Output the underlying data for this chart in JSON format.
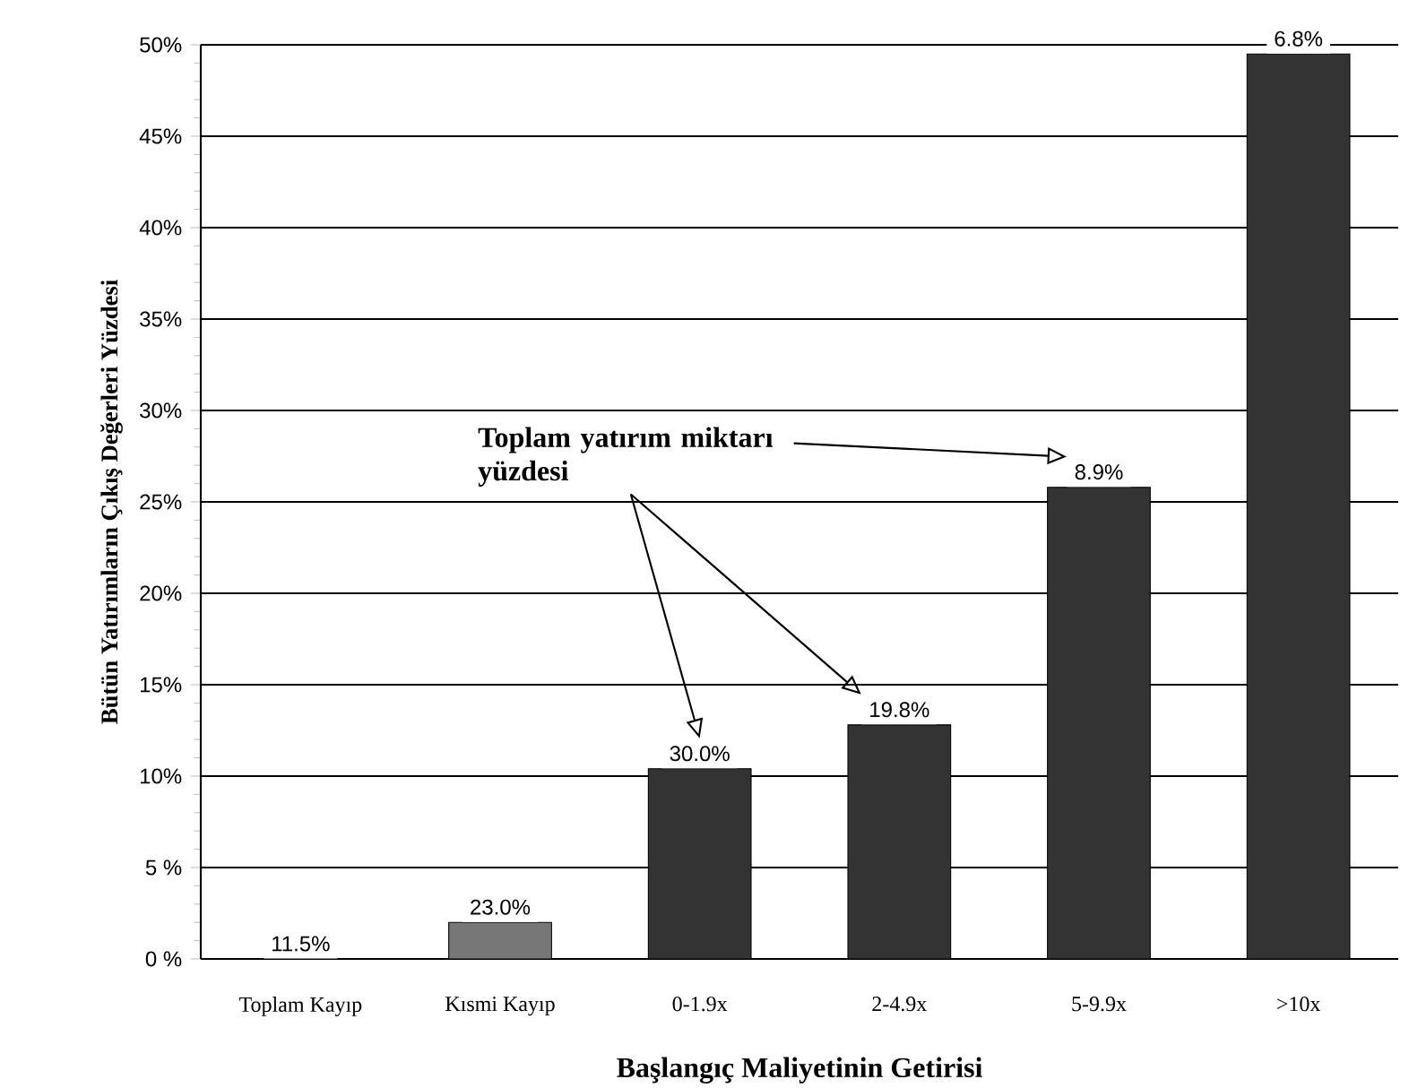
{
  "chart_data": {
    "type": "bar",
    "xlabel": "Başlangıç Maliyetinin Getirisi",
    "ylabel": "Bütün Yatırımların Çıkış Değerleri Yüzdesi",
    "categories": [
      "Toplam Kayıp",
      "Kısmi Kayıp",
      "0-1.9x",
      "2-4.9x",
      "5-9.9x",
      ">10x"
    ],
    "values": [
      0,
      2.0,
      10.4,
      12.8,
      25.8,
      49.5
    ],
    "colors": [
      "#333333",
      "#777777",
      "#333333",
      "#333333",
      "#333333",
      "#333333"
    ],
    "ylim": [
      0,
      50
    ],
    "yticks": [
      {
        "value": 0,
        "label": "0 %"
      },
      {
        "value": 5,
        "label": "5 %"
      },
      {
        "value": 10,
        "label": "10%"
      },
      {
        "value": 15,
        "label": "15%"
      },
      {
        "value": 20,
        "label": "20%"
      },
      {
        "value": 25,
        "label": "25%"
      },
      {
        "value": 30,
        "label": "30%"
      },
      {
        "value": 35,
        "label": "35%"
      },
      {
        "value": 40,
        "label": "40%"
      },
      {
        "value": 45,
        "label": "45%"
      },
      {
        "value": 50,
        "label": "50%"
      }
    ],
    "grid": "y",
    "annotations": [
      "Toplam yatırım miktarı yüzdesi",
      {
        "text": "11.5%",
        "x": "Toplam Kayıp",
        "y": 0
      },
      {
        "text": "23.0%",
        "x": "Kısmi Kayıp",
        "y": 2.0
      },
      {
        "text": "30.0%",
        "x": "0-1.9x",
        "y": 10.4
      },
      {
        "text": "19.8%",
        "x": "2-4.9x",
        "y": 12.8
      },
      {
        "text": "8.9%",
        "x": "5-9.9x",
        "y": 25.8
      },
      {
        "text": "6.8%",
        "x": ">10x",
        "y": 49.5
      }
    ]
  }
}
